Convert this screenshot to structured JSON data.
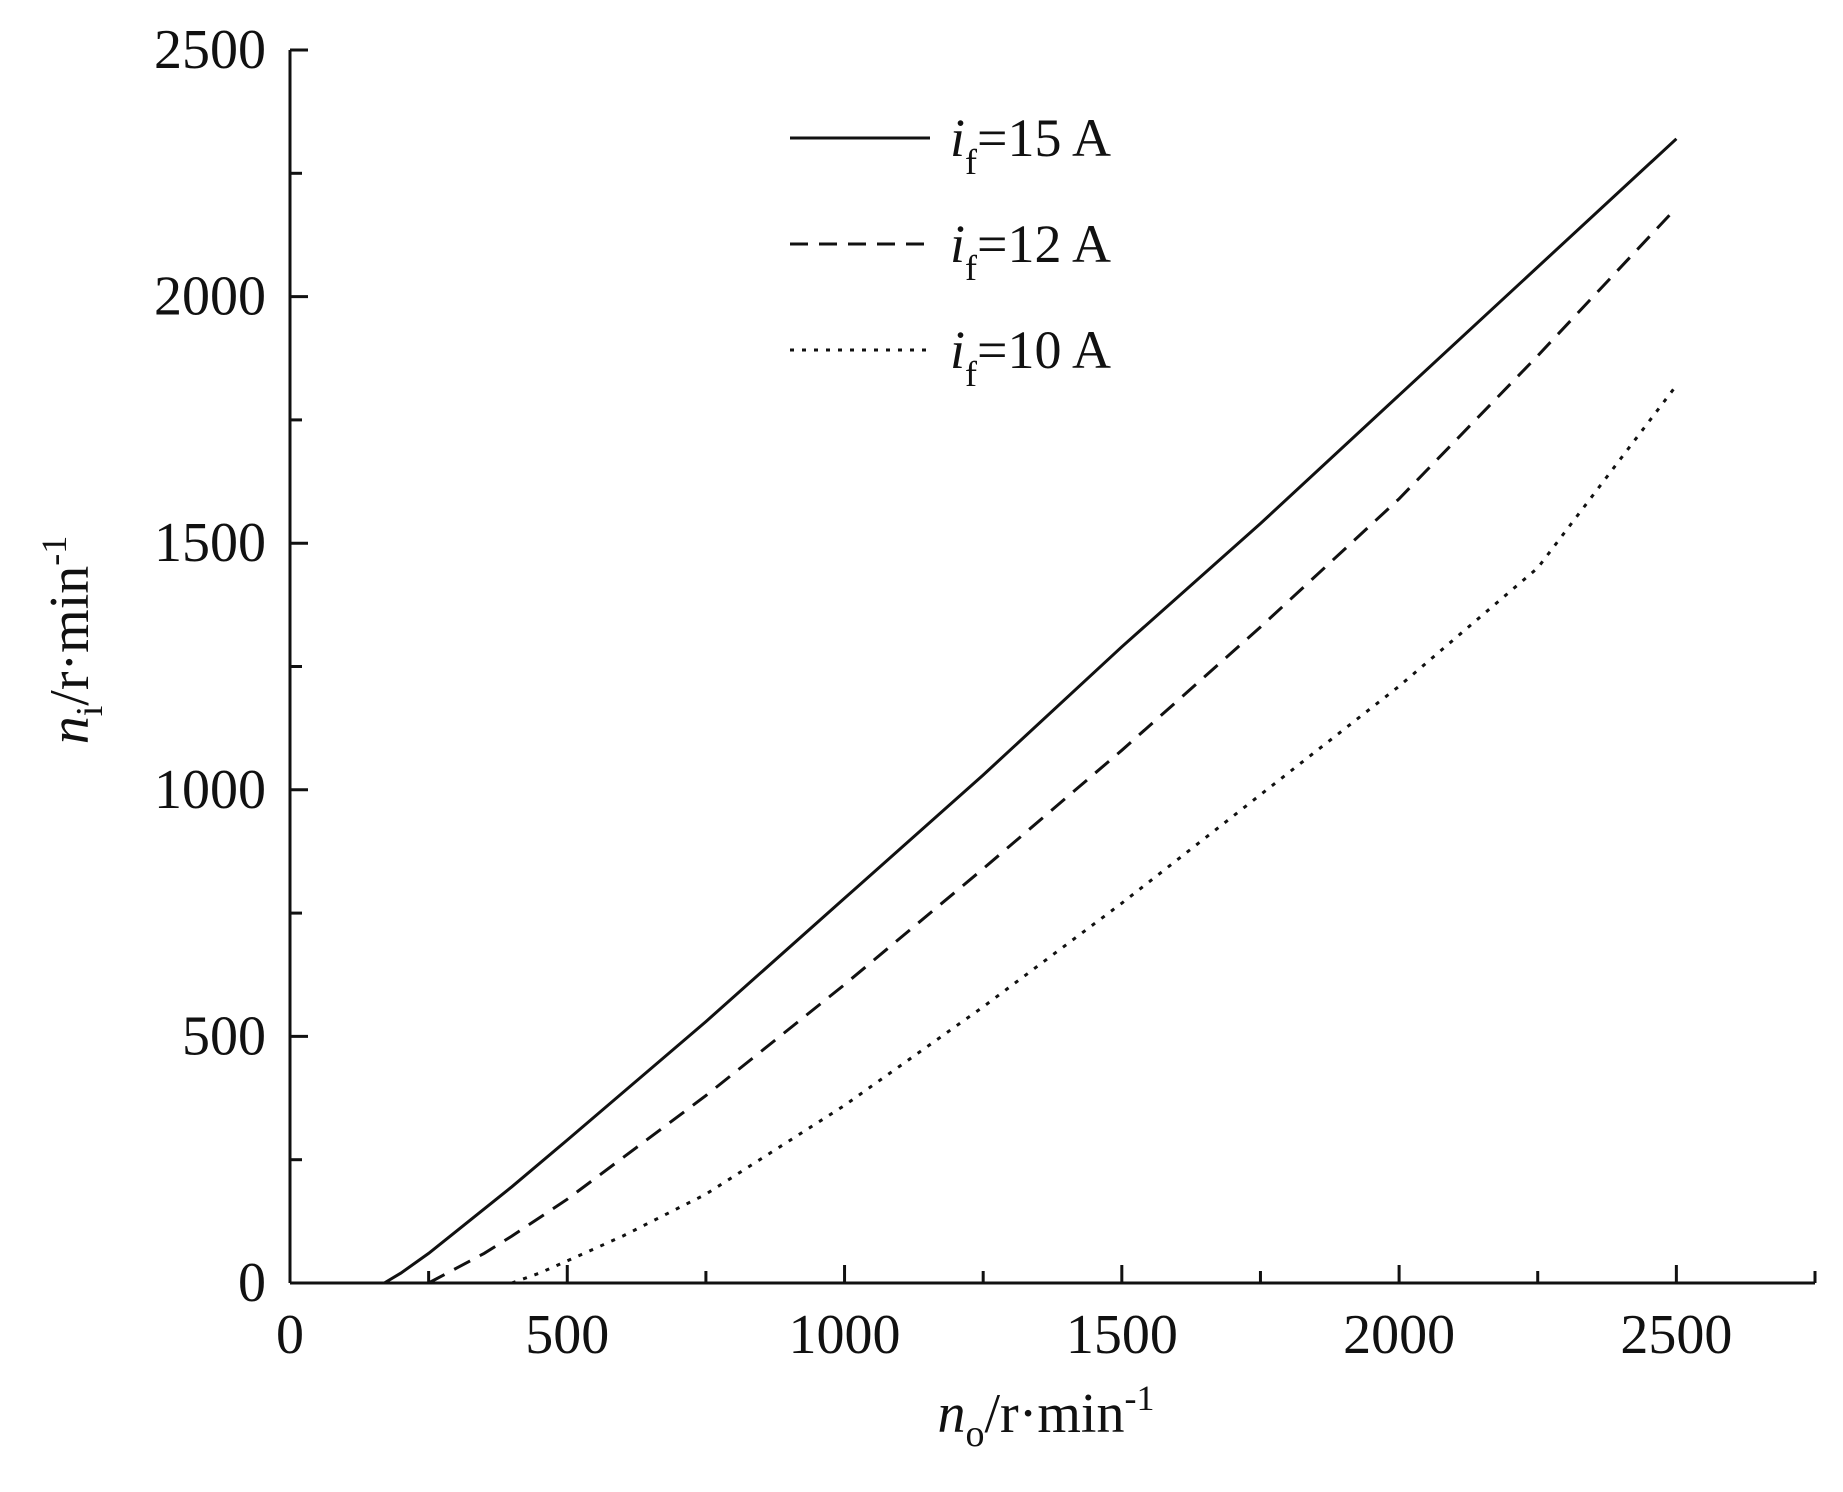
{
  "chart_data": {
    "type": "line",
    "xlabel": {
      "main": "n",
      "sub": "o",
      "unit": "/r·min",
      "sup": "-1"
    },
    "ylabel": {
      "main": "n",
      "sub": "i",
      "unit": "/r·min",
      "sup": "-1"
    },
    "xlim": [
      0,
      2750
    ],
    "ylim": [
      0,
      2500
    ],
    "x_ticks": [
      0,
      500,
      1000,
      1500,
      2000,
      2500
    ],
    "x_minor_ticks": [
      250,
      750,
      1250,
      1750,
      2250,
      2750
    ],
    "y_ticks": [
      0,
      500,
      1000,
      1500,
      2000,
      2500
    ],
    "y_minor_ticks": [
      250,
      750,
      1250,
      1750,
      2250
    ],
    "x_tick_labels": [
      "0",
      "500",
      "1000",
      "1500",
      "2000",
      "2500"
    ],
    "y_tick_labels": [
      "0",
      "500",
      "1000",
      "1500",
      "2000",
      "2500"
    ],
    "grid": false,
    "legend_position": "top-center",
    "series": [
      {
        "label_main": "i",
        "label_sub": "f",
        "label_rest": "=15 A",
        "dash": "solid",
        "x": [
          170,
          200,
          250,
          300,
          400,
          500,
          750,
          1000,
          1250,
          1500,
          1750,
          2000,
          2250,
          2500
        ],
        "y": [
          0,
          20,
          60,
          105,
          195,
          290,
          530,
          780,
          1030,
          1290,
          1540,
          1800,
          2060,
          2320
        ]
      },
      {
        "label_main": "i",
        "label_sub": "f",
        "label_rest": "=12 A",
        "dash": "dashed",
        "x": [
          250,
          300,
          350,
          400,
          500,
          750,
          1000,
          1250,
          1500,
          1750,
          2000,
          2250,
          2500
        ],
        "y": [
          0,
          30,
          60,
          95,
          170,
          380,
          605,
          840,
          1080,
          1330,
          1590,
          1880,
          2180
        ]
      },
      {
        "label_main": "i",
        "label_sub": "f",
        "label_rest": "=10 A",
        "dash": "dotted",
        "x": [
          400,
          450,
          500,
          600,
          750,
          1000,
          1250,
          1500,
          1750,
          2000,
          2250,
          2500
        ],
        "y": [
          0,
          20,
          45,
          95,
          180,
          360,
          560,
          770,
          990,
          1210,
          1450,
          1820
        ]
      }
    ]
  }
}
